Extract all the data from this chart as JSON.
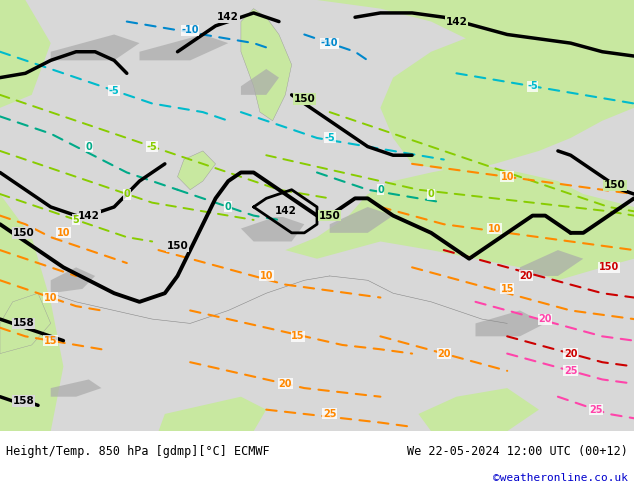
{
  "title_left": "Height/Temp. 850 hPa [gdmp][°C] ECMWF",
  "title_right": "We 22-05-2024 12:00 UTC (00+12)",
  "credit": "©weatheronline.co.uk",
  "bg_color": "#ffffff",
  "sea_color": "#d8d8d8",
  "land_color": "#c8e8a0",
  "mountain_color": "#aaaaaa",
  "fig_width": 6.34,
  "fig_height": 4.9,
  "dpi": 100,
  "credit_color": "#0000cc"
}
